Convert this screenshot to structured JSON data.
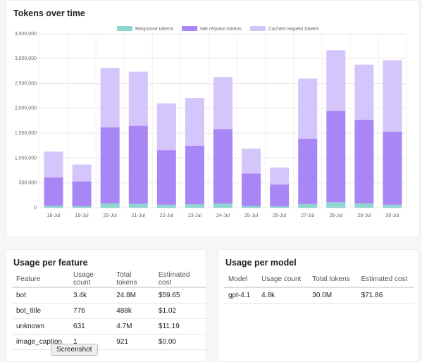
{
  "chart_data": {
    "type": "stacked_bar",
    "title": "Tokens over time",
    "categories": [
      "18-Jul",
      "19-Jul",
      "20-Jul",
      "21-Jul",
      "22-Jul",
      "23-Jul",
      "24-Jul",
      "25-Jul",
      "26-Jul",
      "27-Jul",
      "28-Jul",
      "29-Jul",
      "30-Jul"
    ],
    "series": [
      {
        "name": "Response tokens",
        "color": "#8fd6d1",
        "values": [
          40000,
          30000,
          90000,
          80000,
          60000,
          70000,
          85000,
          35000,
          30000,
          75000,
          110000,
          90000,
          60000
        ]
      },
      {
        "name": "Net request tokens",
        "color": "#a886f6",
        "values": [
          570000,
          500000,
          1530000,
          1570000,
          1100000,
          1180000,
          1495000,
          655000,
          440000,
          1315000,
          1840000,
          1680000,
          1470000
        ]
      },
      {
        "name": "Cached request tokens",
        "color": "#d4c6fa",
        "values": [
          520000,
          340000,
          1190000,
          1090000,
          940000,
          960000,
          1050000,
          500000,
          340000,
          1210000,
          1220000,
          1110000,
          1440000
        ]
      }
    ],
    "ylim": [
      0,
      3500000
    ],
    "yticks": [
      0,
      {
        "value": 500000,
        "label": "500,000"
      },
      {
        "value": 1000000,
        "label": "1,000,000"
      },
      {
        "value": 1500000,
        "label": "1,500,000"
      },
      {
        "value": 2000000,
        "label": "2,000,000"
      },
      {
        "value": 2500000,
        "label": "2,500,000"
      },
      {
        "value": 3000000,
        "label": "3,000,000"
      },
      {
        "value": 3500000,
        "label": "3,500,000"
      }
    ],
    "grid": true,
    "legend": "top"
  },
  "feature_table": {
    "title": "Usage per feature",
    "columns": [
      "Feature",
      "Usage count",
      "Total tokens",
      "Estimated cost"
    ],
    "rows": [
      [
        "bot",
        "3.4k",
        "24.8M",
        "$59.65"
      ],
      [
        "bot_title",
        "776",
        "488k",
        "$1.02"
      ],
      [
        "unknown",
        "631",
        "4.7M",
        "$11.19"
      ],
      [
        "image_caption",
        "1",
        "921",
        "$0.00"
      ]
    ]
  },
  "model_table": {
    "title": "Usage per model",
    "columns": [
      "Model",
      "Usage count",
      "Total tokens",
      "Estimated cost"
    ],
    "rows": [
      [
        "gpt-4.1",
        "4.8k",
        "30.0M",
        "$71.86"
      ]
    ]
  },
  "tooltip": "Screenshot"
}
